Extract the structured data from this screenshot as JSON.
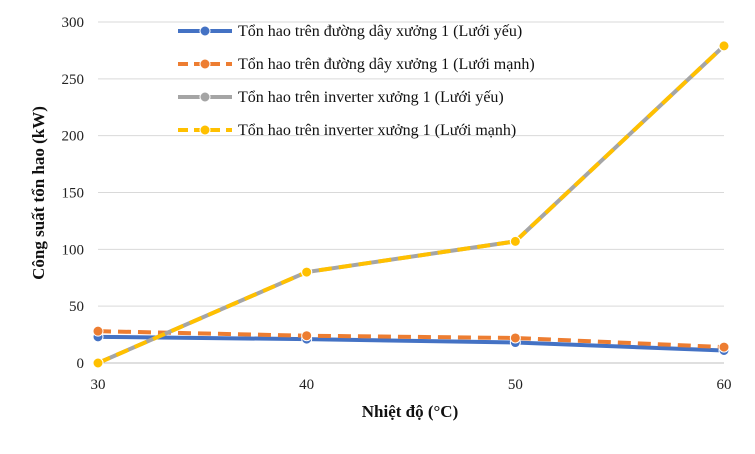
{
  "chart_data": {
    "type": "line",
    "title": "",
    "xlabel": "Nhiệt độ (°C)",
    "ylabel": "Công suất tổn hao (kW)",
    "x": [
      30,
      40,
      50,
      60
    ],
    "xlim": [
      30,
      60
    ],
    "ylim": [
      0,
      300
    ],
    "xticks": [
      "30",
      "40",
      "50",
      "60"
    ],
    "yticks": [
      "0",
      "50",
      "100",
      "150",
      "200",
      "250",
      "300"
    ],
    "grid": "horizontal",
    "legend_position": "top-center",
    "series": [
      {
        "name": "Tổn hao trên đường dây xưởng 1 (Lưới yếu)",
        "values": [
          23,
          21,
          18,
          11
        ],
        "color": "#4472C4",
        "dash": "solid"
      },
      {
        "name": "Tổn hao trên đường dây xưởng 1 (Lưới mạnh)",
        "values": [
          28,
          24,
          22,
          14
        ],
        "color": "#ED7D31",
        "dash": "dashed"
      },
      {
        "name": "Tổn hao trên inverter xưởng 1 (Lưới yếu)",
        "values": [
          0,
          80,
          107,
          279
        ],
        "color": "#A5A5A5",
        "dash": "solid"
      },
      {
        "name": "Tổn hao trên inverter xưởng 1 (Lưới mạnh)",
        "values": [
          0,
          80,
          107,
          279
        ],
        "color": "#FFC000",
        "dash": "dashed"
      }
    ]
  }
}
